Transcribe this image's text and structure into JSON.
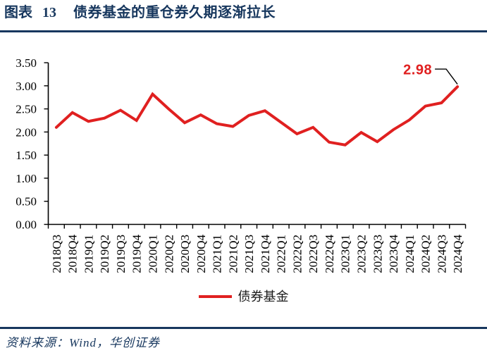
{
  "header": {
    "figure_label": "图表",
    "figure_number": "13",
    "title": "债券基金的重仓券久期逐渐拉长"
  },
  "chart_data": {
    "type": "line",
    "title": "债券基金的重仓券久期逐渐拉长",
    "xlabel": "",
    "ylabel": "",
    "ylim": [
      0,
      3.5
    ],
    "ytick_step": 0.5,
    "ytick_labels": [
      "3.50",
      "3.00",
      "2.50",
      "2.00",
      "1.50",
      "1.00",
      "0.50",
      "0.00"
    ],
    "grid": false,
    "legend_position": "bottom",
    "categories": [
      "2018Q3",
      "2018Q4",
      "2019Q1",
      "2019Q2",
      "2019Q3",
      "2019Q4",
      "2020Q1",
      "2020Q2",
      "2020Q3",
      "2020Q4",
      "2021Q1",
      "2021Q2",
      "2021Q3",
      "2021Q4",
      "2022Q1",
      "2022Q2",
      "2022Q3",
      "2022Q4",
      "2023Q1",
      "2023Q2",
      "2023Q3",
      "2023Q4",
      "2024Q1",
      "2024Q2",
      "2024Q3",
      "2024Q4"
    ],
    "series": [
      {
        "name": "债券基金",
        "color": "#e02020",
        "values": [
          2.1,
          2.42,
          2.23,
          2.3,
          2.47,
          2.25,
          2.82,
          2.5,
          2.2,
          2.37,
          2.18,
          2.12,
          2.36,
          2.46,
          2.21,
          1.96,
          2.1,
          1.78,
          1.72,
          1.99,
          1.79,
          2.05,
          2.26,
          2.56,
          2.63,
          2.98
        ]
      }
    ],
    "annotation": {
      "text": "2.98",
      "color": "#e02020",
      "target_category": "2024Q4"
    },
    "axis_color": "#000000"
  },
  "footer": {
    "source_text": "资料来源：Wind，华创证券"
  },
  "colors": {
    "accent_navy": "#17375e",
    "series_red": "#e02020"
  }
}
